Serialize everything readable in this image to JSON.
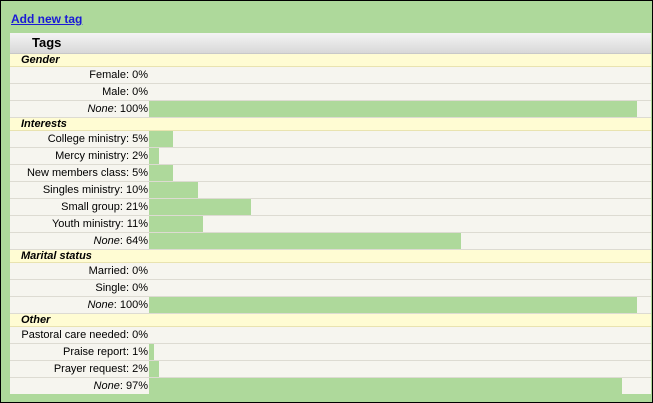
{
  "add_link": "Add new tag",
  "panel_title": "Tags",
  "colors": {
    "bar": "#aed99b",
    "section_bg": "#fffcd3",
    "link": "#1a1ad6"
  },
  "sections": [
    {
      "title": "Gender",
      "rows": [
        {
          "name": "Female",
          "pct": 0,
          "text": "0%",
          "italic": false
        },
        {
          "name": "Male",
          "pct": 0,
          "text": "0%",
          "italic": false
        },
        {
          "name": "None",
          "pct": 100,
          "text": "100%",
          "italic": true
        }
      ]
    },
    {
      "title": "Interests",
      "rows": [
        {
          "name": "College ministry",
          "pct": 5,
          "text": "5%",
          "italic": false
        },
        {
          "name": "Mercy ministry",
          "pct": 2,
          "text": "2%",
          "italic": false
        },
        {
          "name": "New members class",
          "pct": 5,
          "text": "5%",
          "italic": false
        },
        {
          "name": "Singles ministry",
          "pct": 10,
          "text": "10%",
          "italic": false
        },
        {
          "name": "Small group",
          "pct": 21,
          "text": "21%",
          "italic": false
        },
        {
          "name": "Youth ministry",
          "pct": 11,
          "text": "11%",
          "italic": false
        },
        {
          "name": "None",
          "pct": 64,
          "text": "64%",
          "italic": true
        }
      ]
    },
    {
      "title": "Marital status",
      "rows": [
        {
          "name": "Married",
          "pct": 0,
          "text": "0%",
          "italic": false
        },
        {
          "name": "Single",
          "pct": 0,
          "text": "0%",
          "italic": false
        },
        {
          "name": "None",
          "pct": 100,
          "text": "100%",
          "italic": true
        }
      ]
    },
    {
      "title": "Other",
      "rows": [
        {
          "name": "Pastoral care needed",
          "pct": 0,
          "text": "0%",
          "italic": false
        },
        {
          "name": "Praise report",
          "pct": 1,
          "text": "1%",
          "italic": false
        },
        {
          "name": "Prayer request",
          "pct": 2,
          "text": "2%",
          "italic": false
        },
        {
          "name": "None",
          "pct": 97,
          "text": "97%",
          "italic": true
        }
      ]
    }
  ]
}
